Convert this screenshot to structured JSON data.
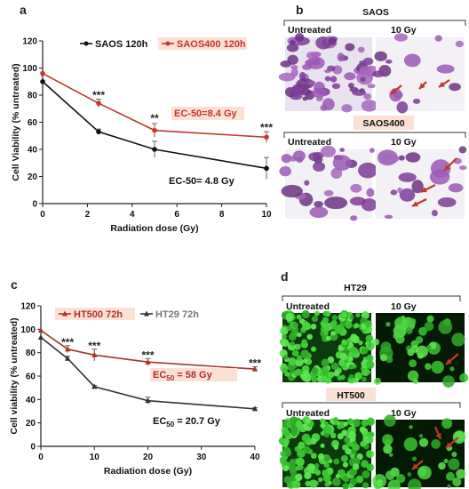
{
  "chart_data": [
    {
      "panel": "a",
      "type": "line",
      "xlabel": "Radiation dose (Gy)",
      "ylabel": "Cell Viability (% untreated)",
      "xlim": [
        0,
        10
      ],
      "ylim": [
        0,
        120
      ],
      "xticks": [
        0,
        2,
        4,
        6,
        8,
        10
      ],
      "yticks": [
        0,
        20,
        40,
        60,
        80,
        100,
        120
      ],
      "legend": "top",
      "series": [
        {
          "name": "SAOS 120h",
          "color": "#111111",
          "marker": "circle",
          "x": [
            0,
            2.5,
            5,
            10
          ],
          "y": [
            90,
            53,
            40,
            26
          ],
          "err": [
            0,
            2,
            6,
            8
          ]
        },
        {
          "name": "SAOS400 120h",
          "color": "#c0392b",
          "marker": "circle",
          "x": [
            0,
            2.5,
            5,
            10
          ],
          "y": [
            96,
            74,
            54,
            49
          ],
          "err": [
            0,
            3,
            5,
            4
          ]
        }
      ],
      "significance": [
        {
          "x": 2.5,
          "y": 80,
          "label": "***"
        },
        {
          "x": 5,
          "y": 63,
          "label": "**"
        },
        {
          "x": 10,
          "y": 56,
          "label": "***"
        }
      ],
      "annotations": [
        {
          "text": "EC-50=8.4 Gy",
          "color": "#c0392b"
        },
        {
          "text": "EC-50= 4.8 Gy",
          "color": "#111111"
        }
      ]
    },
    {
      "panel": "c",
      "type": "line",
      "xlabel": "Radiation dose (Gy)",
      "ylabel": "Cell viability (% untreated)",
      "xlim": [
        0,
        40
      ],
      "ylim": [
        0,
        120
      ],
      "xticks": [
        0,
        10,
        20,
        30,
        40
      ],
      "yticks": [
        0,
        20,
        40,
        60,
        80,
        100,
        120
      ],
      "legend": "top",
      "series": [
        {
          "name": "HT500 72h",
          "color": "#a93226",
          "marker": "triangle",
          "x": [
            0,
            5,
            10,
            20,
            40
          ],
          "y": [
            99,
            83,
            78,
            72,
            66
          ],
          "err": [
            0,
            3,
            5,
            3,
            2
          ]
        },
        {
          "name": "HT29 72h",
          "color": "#333333",
          "marker": "triangle",
          "x": [
            0,
            5,
            10,
            20,
            40
          ],
          "y": [
            93,
            75,
            51,
            39,
            32
          ],
          "err": [
            0,
            2,
            1,
            3,
            1
          ]
        }
      ],
      "significance": [
        {
          "x": 5,
          "y": 89,
          "label": "***"
        },
        {
          "x": 10,
          "y": 86,
          "label": "***"
        },
        {
          "x": 20,
          "y": 78,
          "label": "***"
        },
        {
          "x": 40,
          "y": 71,
          "label": "***"
        }
      ],
      "annotations": [
        {
          "text": "EC",
          "sub": "50",
          "rest": " = 58 Gy",
          "color": "#a93226"
        },
        {
          "text": "EC",
          "sub": "50",
          "rest": " = 20.7 Gy",
          "color": "#111111"
        }
      ]
    }
  ],
  "panels": {
    "a": "a",
    "b": "b",
    "c": "c",
    "d": "d"
  },
  "images": {
    "b": {
      "top_title": "SAOS",
      "bottom_title": "SAOS400",
      "untreated": "Untreated",
      "treated": "10 Gy",
      "untreated2": "Untreated",
      "treated2": "10 Gy",
      "cell_color": "#8e44ad",
      "arrow_color": "#c0392b"
    },
    "d": {
      "top_title": "HT29",
      "bottom_title": "HT500",
      "untreated": "Untreated",
      "treated": "10 Gy",
      "untreated2": "Untreated",
      "treated2": "10 Gy",
      "cell_color": "#3fc93a",
      "arrow_color": "#c0392b"
    }
  }
}
